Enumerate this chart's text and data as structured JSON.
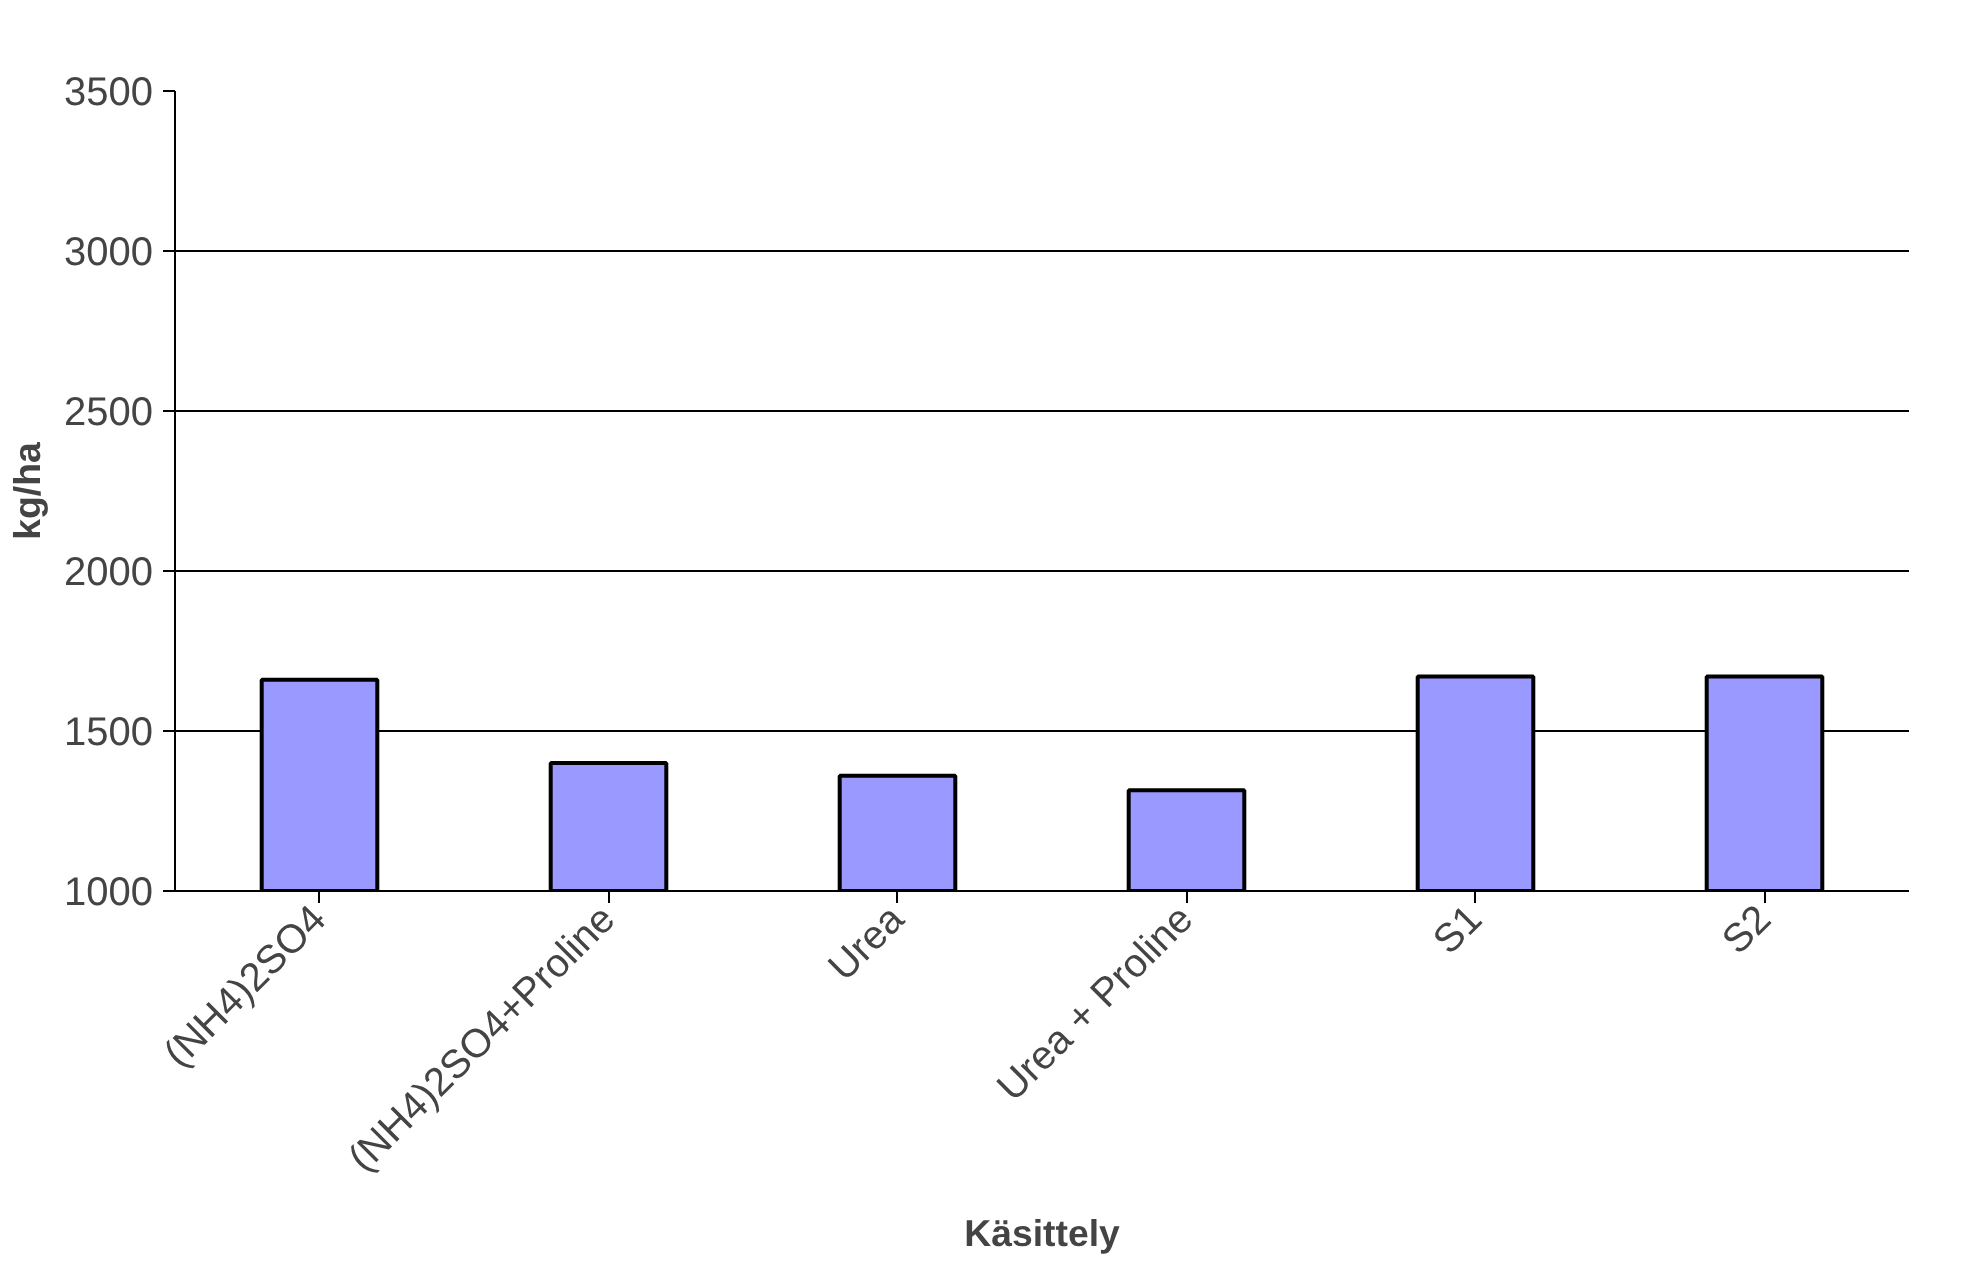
{
  "chart_data": {
    "type": "bar",
    "xlabel": "Käsittely",
    "ylabel": "kg/ha",
    "categories": [
      "(NH4)2SO4",
      "(NH4)2SO4+Proline",
      "Urea",
      "Urea + Proline",
      "S1",
      "S2"
    ],
    "values": [
      1660,
      1400,
      1360,
      1315,
      1670,
      1670
    ],
    "color": "#9999ff",
    "ylim": [
      1000,
      3500
    ],
    "yticks": [
      1000,
      1500,
      2000,
      2500,
      3000,
      3500
    ],
    "grid": "y"
  }
}
